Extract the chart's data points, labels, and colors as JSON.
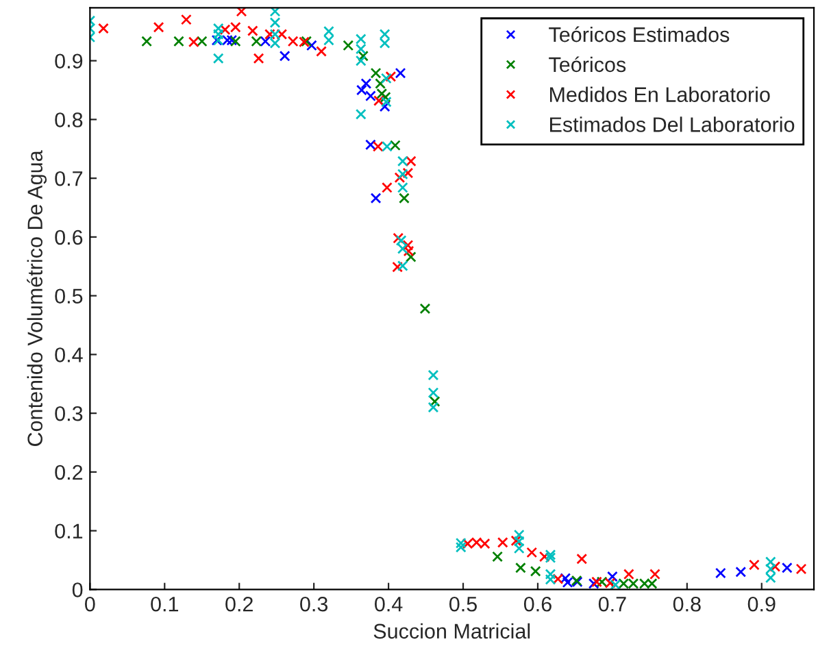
{
  "chart_data": {
    "type": "scatter",
    "xlabel": "Succion Matricial",
    "ylabel": "Contenido Volumétrico De Agua",
    "xlim": [
      0,
      0.97
    ],
    "ylim": [
      0,
      0.99
    ],
    "xticks": [
      0,
      0.1,
      0.2,
      0.3,
      0.4,
      0.5,
      0.6,
      0.7,
      0.8,
      0.9
    ],
    "yticks": [
      0,
      0.1,
      0.2,
      0.3,
      0.4,
      0.5,
      0.6,
      0.7,
      0.8,
      0.9
    ],
    "grid": false,
    "legend": "top right",
    "marker": "cross",
    "series": [
      {
        "name": "Teóricos Estimados",
        "color": "#0000ff",
        "x": [
          0.17,
          0.184,
          0.19,
          0.235,
          0.261,
          0.297,
          0.364,
          0.37,
          0.376,
          0.395,
          0.416,
          0.376,
          0.383,
          0.637,
          0.64,
          0.653,
          0.675,
          0.7,
          0.845,
          0.872,
          0.934
        ],
        "values": [
          0.935,
          0.935,
          0.935,
          0.933,
          0.908,
          0.926,
          0.85,
          0.861,
          0.84,
          0.822,
          0.879,
          0.757,
          0.666,
          0.019,
          0.012,
          0.013,
          0.01,
          0.022,
          0.028,
          0.03,
          0.037
        ]
      },
      {
        "name": "Teóricos",
        "color": "#008000",
        "x": [
          0.076,
          0.119,
          0.15,
          0.195,
          0.223,
          0.29,
          0.346,
          0.366,
          0.383,
          0.389,
          0.391,
          0.396,
          0.409,
          0.421,
          0.43,
          0.449,
          0.462,
          0.546,
          0.577,
          0.597,
          0.652,
          0.686,
          0.715,
          0.728,
          0.743,
          0.753
        ],
        "values": [
          0.933,
          0.933,
          0.933,
          0.933,
          0.933,
          0.933,
          0.926,
          0.908,
          0.879,
          0.861,
          0.844,
          0.838,
          0.756,
          0.666,
          0.566,
          0.478,
          0.32,
          0.056,
          0.037,
          0.031,
          0.015,
          0.013,
          0.01,
          0.01,
          0.01,
          0.01
        ]
      },
      {
        "name": "Medidos En Laboratorio",
        "color": "#ff0000",
        "x": [
          0.018,
          0.092,
          0.129,
          0.203,
          0.139,
          0.181,
          0.195,
          0.218,
          0.226,
          0.241,
          0.257,
          0.272,
          0.287,
          0.31,
          0.403,
          0.387,
          0.386,
          0.43,
          0.426,
          0.415,
          0.398,
          0.413,
          0.426,
          0.427,
          0.412,
          0.506,
          0.518,
          0.529,
          0.553,
          0.571,
          0.592,
          0.609,
          0.627,
          0.659,
          0.679,
          0.697,
          0.722,
          0.757,
          0.89,
          0.918,
          0.953
        ],
        "values": [
          0.955,
          0.957,
          0.97,
          0.984,
          0.932,
          0.953,
          0.957,
          0.951,
          0.904,
          0.945,
          0.945,
          0.933,
          0.932,
          0.916,
          0.873,
          0.832,
          0.754,
          0.729,
          0.709,
          0.701,
          0.684,
          0.598,
          0.586,
          0.576,
          0.549,
          0.078,
          0.08,
          0.078,
          0.08,
          0.083,
          0.063,
          0.056,
          0.018,
          0.052,
          0.013,
          0.011,
          0.026,
          0.026,
          0.042,
          0.039,
          0.035
        ]
      },
      {
        "name": "Estimados Del Laboratorio",
        "color": "#00bfbf",
        "x": [
          0,
          0,
          0,
          0.172,
          0.172,
          0.172,
          0.172,
          0.248,
          0.248,
          0.248,
          0.248,
          0.32,
          0.32,
          0.363,
          0.363,
          0.363,
          0.395,
          0.395,
          0.397,
          0.397,
          0.363,
          0.398,
          0.419,
          0.419,
          0.419,
          0.417,
          0.419,
          0.419,
          0.46,
          0.46,
          0.46,
          0.497,
          0.497,
          0.575,
          0.575,
          0.575,
          0.617,
          0.617,
          0.617,
          0.617,
          0.704,
          0.912,
          0.912,
          0.912
        ],
        "values": [
          0.968,
          0.955,
          0.94,
          0.955,
          0.945,
          0.935,
          0.904,
          0.984,
          0.965,
          0.945,
          0.93,
          0.95,
          0.935,
          0.937,
          0.92,
          0.9,
          0.945,
          0.93,
          0.87,
          0.83,
          0.809,
          0.754,
          0.729,
          0.707,
          0.684,
          0.594,
          0.58,
          0.551,
          0.365,
          0.335,
          0.31,
          0.079,
          0.072,
          0.093,
          0.082,
          0.07,
          0.059,
          0.054,
          0.026,
          0.017,
          0.008,
          0.047,
          0.035,
          0.02
        ]
      }
    ]
  }
}
